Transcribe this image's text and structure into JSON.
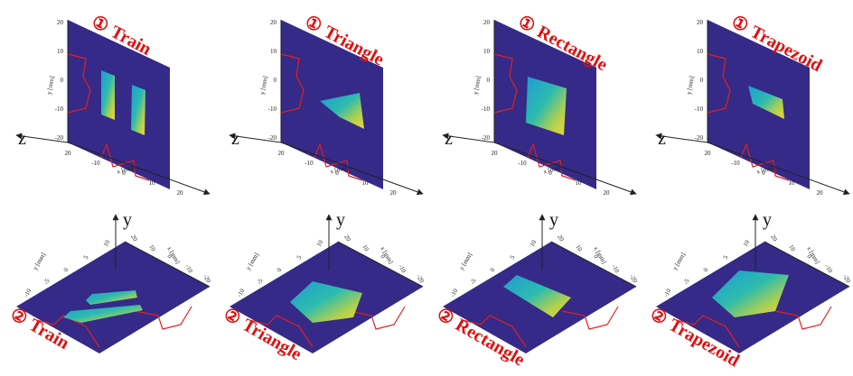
{
  "top_row": {
    "panels": [
      {
        "marker": "①",
        "label": "Train"
      },
      {
        "marker": "①",
        "label": "Triangle"
      },
      {
        "marker": "①",
        "label": "Rectangle"
      },
      {
        "marker": "①",
        "label": "Trapezoid"
      }
    ],
    "axis_name": "z",
    "x_label": "x [mm]",
    "y_label": "y [mm]",
    "y_ticks": [
      "20",
      "10",
      "0",
      "-10",
      "-20"
    ],
    "x_ticks": [
      "20",
      "-10",
      "0",
      "10",
      "20"
    ]
  },
  "bottom_row": {
    "panels": [
      {
        "marker": "②",
        "label": "Train"
      },
      {
        "marker": "②",
        "label": "Triangle"
      },
      {
        "marker": "②",
        "label": "Rectangle"
      },
      {
        "marker": "②",
        "label": "Trapezoid"
      }
    ],
    "axis_name": "y",
    "x_label": "x [mm]",
    "y_label": "y [mm]",
    "left_ticks": [
      "-10",
      "-5",
      "0",
      "5",
      "10"
    ],
    "right_ticks": [
      "20",
      "10",
      "0",
      "-10",
      "-20"
    ]
  }
}
